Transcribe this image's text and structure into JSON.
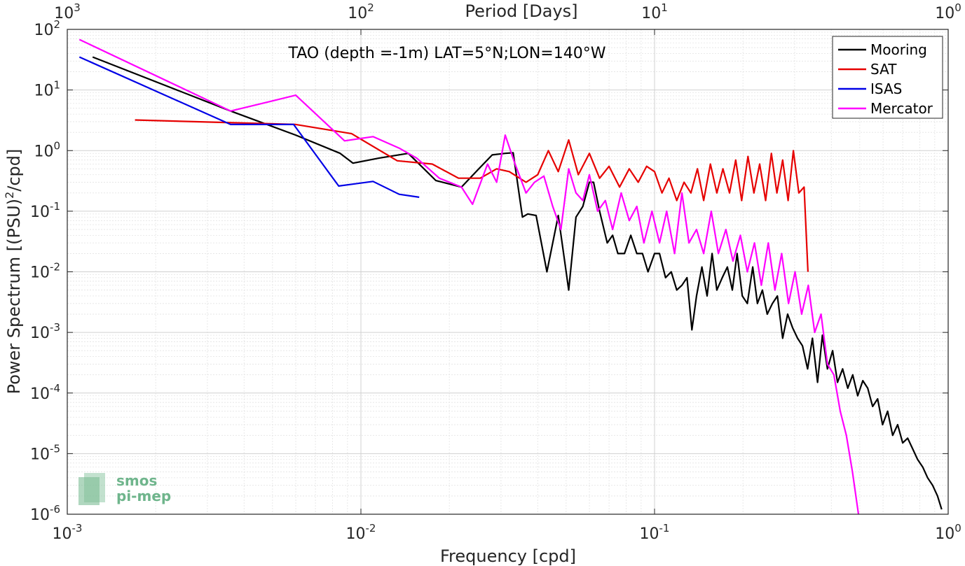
{
  "chart_data": {
    "type": "line",
    "title": "",
    "annotation": "TAO (depth =-1m) LAT=5°N;LON=140°W",
    "xlabel": "Frequency [cpd]",
    "ylabel": "Power Spectrum [(PSU)²/cpd]",
    "ylabel_parts": {
      "base": "Power Spectrum [(PSU)",
      "sup": "2",
      "tail": "/cpd]"
    },
    "x2label": "Period [Days]",
    "xscale": "log",
    "yscale": "log",
    "xlim": [
      0.001,
      1
    ],
    "ylim": [
      1e-06,
      100
    ],
    "grid": true,
    "legend_position": "top-right",
    "x_ticks": [
      {
        "value": 0.001,
        "base": "10",
        "exp": "-3"
      },
      {
        "value": 0.01,
        "base": "10",
        "exp": "-2"
      },
      {
        "value": 0.1,
        "base": "10",
        "exp": "-1"
      },
      {
        "value": 1,
        "base": "10",
        "exp": "0"
      }
    ],
    "y_ticks": [
      {
        "value": 1e-06,
        "base": "10",
        "exp": "-6"
      },
      {
        "value": 1e-05,
        "base": "10",
        "exp": "-5"
      },
      {
        "value": 0.0001,
        "base": "10",
        "exp": "-4"
      },
      {
        "value": 0.001,
        "base": "10",
        "exp": "-3"
      },
      {
        "value": 0.01,
        "base": "10",
        "exp": "-2"
      },
      {
        "value": 0.1,
        "base": "10",
        "exp": "-1"
      },
      {
        "value": 1,
        "base": "10",
        "exp": "0"
      },
      {
        "value": 10,
        "base": "10",
        "exp": "1"
      },
      {
        "value": 100,
        "base": "10",
        "exp": "2"
      }
    ],
    "x2_ticks": [
      {
        "value": 1000,
        "base": "10",
        "exp": "3"
      },
      {
        "value": 100,
        "base": "10",
        "exp": "2"
      },
      {
        "value": 10,
        "base": "10",
        "exp": "1"
      },
      {
        "value": 1,
        "base": "10",
        "exp": "0"
      }
    ],
    "series": [
      {
        "name": "Mooring",
        "color": "#000000",
        "x": [
          0.00122,
          0.0036,
          0.006,
          0.0085,
          0.0094,
          0.0115,
          0.0145,
          0.018,
          0.022,
          0.025,
          0.028,
          0.031,
          0.033,
          0.0355,
          0.037,
          0.0395,
          0.043,
          0.047,
          0.049,
          0.051,
          0.054,
          0.057,
          0.06,
          0.062,
          0.065,
          0.069,
          0.072,
          0.075,
          0.079,
          0.083,
          0.087,
          0.091,
          0.095,
          0.1,
          0.104,
          0.109,
          0.114,
          0.119,
          0.124,
          0.129,
          0.134,
          0.139,
          0.145,
          0.151,
          0.157,
          0.163,
          0.17,
          0.177,
          0.184,
          0.191,
          0.199,
          0.207,
          0.216,
          0.224,
          0.233,
          0.242,
          0.252,
          0.262,
          0.273,
          0.284,
          0.295,
          0.307,
          0.319,
          0.332,
          0.345,
          0.359,
          0.373,
          0.388,
          0.404,
          0.42,
          0.437,
          0.455,
          0.473,
          0.492,
          0.512,
          0.532,
          0.553,
          0.575,
          0.598,
          0.622,
          0.647,
          0.673,
          0.7,
          0.728,
          0.757,
          0.787,
          0.819,
          0.851,
          0.885,
          0.92,
          0.95
        ],
        "y": [
          35,
          4.5,
          1.8,
          0.9,
          0.62,
          0.75,
          0.9,
          0.32,
          0.25,
          0.48,
          0.85,
          0.9,
          0.92,
          0.08,
          0.09,
          0.085,
          0.01,
          0.085,
          0.02,
          0.005,
          0.08,
          0.12,
          0.3,
          0.3,
          0.1,
          0.03,
          0.04,
          0.02,
          0.02,
          0.04,
          0.02,
          0.02,
          0.01,
          0.02,
          0.02,
          0.008,
          0.01,
          0.005,
          0.006,
          0.008,
          0.0011,
          0.004,
          0.012,
          0.004,
          0.02,
          0.005,
          0.008,
          0.012,
          0.005,
          0.02,
          0.004,
          0.003,
          0.012,
          0.003,
          0.005,
          0.002,
          0.003,
          0.004,
          0.0008,
          0.002,
          0.0012,
          0.0008,
          0.0006,
          0.00025,
          0.0008,
          0.00015,
          0.0009,
          0.00025,
          0.0005,
          0.00015,
          0.00025,
          0.00012,
          0.0002,
          9e-05,
          0.00016,
          0.00012,
          6e-05,
          8e-05,
          3e-05,
          5e-05,
          2e-05,
          3e-05,
          1.5e-05,
          1.8e-05,
          1.2e-05,
          8e-06,
          6e-06,
          4e-06,
          3e-06,
          2e-06,
          1.2e-06
        ]
      },
      {
        "name": "SAT",
        "color": "#e60000",
        "x": [
          0.0017,
          0.006,
          0.0093,
          0.0133,
          0.0175,
          0.0215,
          0.0255,
          0.029,
          0.032,
          0.0365,
          0.04,
          0.0435,
          0.047,
          0.051,
          0.055,
          0.06,
          0.065,
          0.07,
          0.076,
          0.082,
          0.088,
          0.094,
          0.1,
          0.106,
          0.112,
          0.119,
          0.126,
          0.133,
          0.14,
          0.147,
          0.155,
          0.163,
          0.171,
          0.18,
          0.189,
          0.198,
          0.208,
          0.218,
          0.228,
          0.239,
          0.25,
          0.261,
          0.273,
          0.285,
          0.297,
          0.31,
          0.323,
          0.333
        ],
        "y": [
          3.2,
          2.7,
          1.9,
          0.68,
          0.6,
          0.35,
          0.35,
          0.5,
          0.45,
          0.3,
          0.4,
          1.0,
          0.45,
          1.5,
          0.4,
          0.9,
          0.35,
          0.55,
          0.25,
          0.5,
          0.3,
          0.55,
          0.45,
          0.2,
          0.35,
          0.15,
          0.3,
          0.2,
          0.5,
          0.15,
          0.6,
          0.2,
          0.5,
          0.2,
          0.7,
          0.15,
          0.8,
          0.2,
          0.6,
          0.15,
          0.9,
          0.2,
          0.7,
          0.15,
          1.0,
          0.2,
          0.25,
          0.01
        ]
      },
      {
        "name": "ISAS",
        "color": "#0000e6",
        "x": [
          0.0011,
          0.0036,
          0.0059,
          0.0084,
          0.011,
          0.0135,
          0.0158
        ],
        "y": [
          35,
          2.7,
          2.7,
          0.26,
          0.31,
          0.19,
          0.17
        ]
      },
      {
        "name": "Mercator",
        "color": "#ff00ff",
        "x": [
          0.0011,
          0.0036,
          0.006,
          0.0088,
          0.011,
          0.0135,
          0.0155,
          0.0185,
          0.022,
          0.024,
          0.027,
          0.029,
          0.031,
          0.0335,
          0.0365,
          0.039,
          0.042,
          0.045,
          0.048,
          0.051,
          0.054,
          0.057,
          0.06,
          0.064,
          0.068,
          0.072,
          0.077,
          0.082,
          0.087,
          0.092,
          0.098,
          0.104,
          0.11,
          0.117,
          0.124,
          0.131,
          0.139,
          0.147,
          0.156,
          0.165,
          0.175,
          0.185,
          0.196,
          0.207,
          0.219,
          0.231,
          0.244,
          0.257,
          0.271,
          0.286,
          0.301,
          0.317,
          0.334,
          0.351,
          0.369,
          0.388,
          0.408,
          0.429,
          0.45,
          0.472,
          0.495
        ],
        "y": [
          68,
          4.5,
          8.2,
          1.45,
          1.7,
          1.1,
          0.75,
          0.35,
          0.25,
          0.13,
          0.6,
          0.3,
          1.8,
          0.6,
          0.2,
          0.3,
          0.38,
          0.12,
          0.05,
          0.5,
          0.2,
          0.15,
          0.4,
          0.1,
          0.15,
          0.05,
          0.2,
          0.07,
          0.12,
          0.03,
          0.1,
          0.03,
          0.1,
          0.02,
          0.2,
          0.03,
          0.05,
          0.02,
          0.1,
          0.02,
          0.05,
          0.015,
          0.04,
          0.01,
          0.03,
          0.006,
          0.03,
          0.005,
          0.02,
          0.003,
          0.01,
          0.002,
          0.006,
          0.001,
          0.002,
          0.0003,
          0.0002,
          5e-05,
          2e-05,
          5e-06,
          1e-06
        ]
      }
    ]
  }
}
